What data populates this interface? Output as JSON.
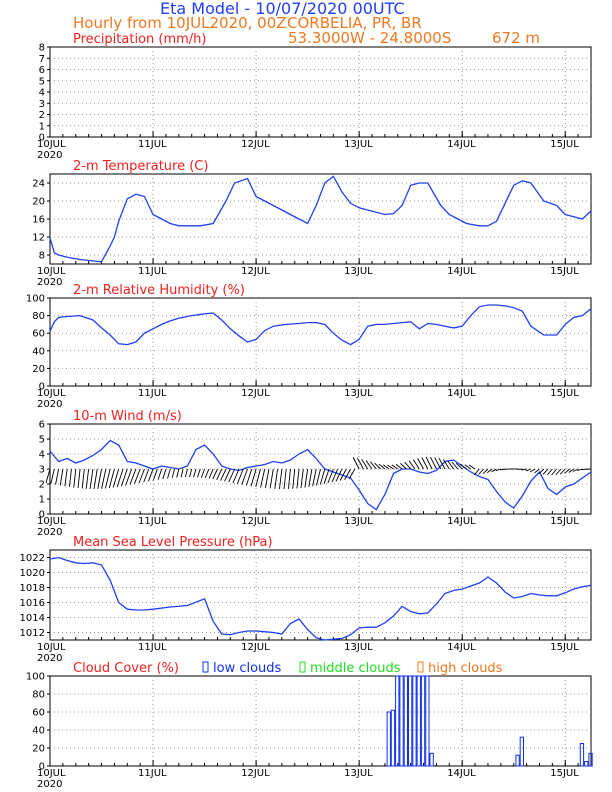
{
  "header": {
    "title": "Eta Model - 10/07/2020 00UTC",
    "subtitle": "Hourly from 10JUL2020, 00Z",
    "location": "CORBELIA, PR, BR",
    "coords": "53.3000W - 24.8000S",
    "elevation": "672  m"
  },
  "colors": {
    "title": "#1f3ff5",
    "subtitle": "#f07820",
    "panel_title": "#f02020",
    "series": "#2040f0",
    "low": "#1030f0",
    "middle": "#20e020",
    "high": "#f07820",
    "grid": "#999999"
  },
  "x_ticks": [
    "10JUL",
    "11JUL",
    "12JUL",
    "13JUL",
    "14JUL",
    "15JUL"
  ],
  "year_label": "2020",
  "chart_data": [
    {
      "id": "precip",
      "type": "bar",
      "title": "Precipitation (mm/h)",
      "ylim": [
        0,
        8
      ],
      "yticks": [
        "0",
        "1",
        "2",
        "3",
        "4",
        "5",
        "6",
        "7",
        "8"
      ],
      "x": [
        0,
        126
      ],
      "values": [
        0,
        0
      ]
    },
    {
      "id": "temp",
      "type": "line",
      "title": "2-m Temperature (C)",
      "ylim": [
        6,
        26
      ],
      "yticks": [
        "8",
        "12",
        "16",
        "20",
        "24"
      ],
      "x": [
        0,
        1,
        2,
        4,
        7,
        10,
        12,
        14,
        15,
        16,
        18,
        20,
        22,
        24,
        26,
        28,
        30,
        32,
        35,
        38,
        41,
        43,
        46,
        48,
        50,
        52,
        54,
        56,
        58,
        60,
        62,
        64,
        66,
        68,
        70,
        72,
        74,
        76,
        78,
        80,
        82,
        84,
        86,
        88,
        91,
        93,
        95,
        97,
        100,
        102,
        104,
        106,
        108,
        110,
        112,
        115,
        118,
        120,
        122,
        124,
        126
      ],
      "values": [
        11.8,
        8.5,
        8.0,
        7.5,
        7.0,
        6.7,
        6.5,
        10.0,
        12.0,
        15.5,
        20.5,
        21.5,
        21.0,
        17.0,
        16.0,
        15.0,
        14.5,
        14.5,
        14.5,
        15.0,
        20.0,
        24.0,
        25.0,
        21.0,
        20.0,
        19.0,
        18.0,
        17.0,
        16.0,
        15.0,
        19.0,
        24.0,
        25.5,
        22.0,
        19.5,
        18.5,
        18.0,
        17.5,
        17.0,
        17.2,
        19.0,
        23.5,
        24.0,
        24.0,
        19.0,
        17.0,
        16.0,
        15.0,
        14.5,
        14.5,
        15.5,
        19.5,
        23.5,
        24.5,
        24.0,
        20.0,
        19.0,
        17.0,
        16.5,
        16.0,
        17.8
      ]
    },
    {
      "id": "rh",
      "type": "line",
      "title": "2-m Relative Humidity (%)",
      "ylim": [
        0,
        100
      ],
      "yticks": [
        "0",
        "20",
        "40",
        "60",
        "80",
        "100"
      ],
      "x": [
        0,
        1,
        2,
        4,
        7,
        10,
        12,
        14,
        16,
        18,
        20,
        22,
        24,
        26,
        28,
        30,
        33,
        36,
        38,
        40,
        42,
        44,
        46,
        48,
        50,
        52,
        55,
        58,
        60,
        62,
        64,
        66,
        68,
        70,
        72,
        74,
        76,
        78,
        80,
        82,
        84,
        86,
        88,
        90,
        92,
        94,
        96,
        98,
        100,
        102,
        104,
        106,
        108,
        110,
        112,
        115,
        118,
        120,
        122,
        124,
        126
      ],
      "values": [
        62,
        73,
        78,
        79,
        80,
        75,
        66,
        58,
        48,
        47,
        50,
        60,
        65,
        70,
        74,
        77,
        80,
        82,
        83,
        75,
        65,
        57,
        50,
        53,
        63,
        68,
        70,
        71,
        72,
        72,
        70,
        60,
        52,
        47,
        53,
        68,
        70,
        70,
        71,
        72,
        73,
        65,
        71,
        70,
        68,
        66,
        68,
        80,
        90,
        92,
        92,
        91,
        89,
        85,
        68,
        58,
        58,
        70,
        78,
        80,
        88
      ]
    },
    {
      "id": "wind",
      "type": "line",
      "title": "10-m Wind (m/s)",
      "ylim": [
        0,
        6
      ],
      "yticks": [
        "0",
        "1",
        "2",
        "3",
        "4",
        "5",
        "6"
      ],
      "x": [
        0,
        2,
        4,
        6,
        8,
        10,
        12,
        14,
        16,
        18,
        20,
        22,
        24,
        26,
        28,
        30,
        32,
        34,
        36,
        38,
        40,
        42,
        44,
        46,
        48,
        50,
        52,
        54,
        56,
        58,
        60,
        62,
        64,
        66,
        68,
        70,
        72,
        74,
        76,
        78,
        80,
        82,
        84,
        86,
        88,
        90,
        92,
        94,
        96,
        98,
        100,
        102,
        104,
        106,
        108,
        110,
        112,
        114,
        116,
        118,
        120,
        122,
        124,
        126
      ],
      "values": [
        4.2,
        3.5,
        3.7,
        3.4,
        3.6,
        3.9,
        4.3,
        4.9,
        4.6,
        3.5,
        3.4,
        3.2,
        3.0,
        3.2,
        3.1,
        3.0,
        3.2,
        4.3,
        4.6,
        4.0,
        3.2,
        3.0,
        2.9,
        3.1,
        3.2,
        3.3,
        3.5,
        3.4,
        3.6,
        4.0,
        4.3,
        3.7,
        3.0,
        2.8,
        2.6,
        2.4,
        1.6,
        0.7,
        0.3,
        1.3,
        2.7,
        3.0,
        3.0,
        2.8,
        2.7,
        2.9,
        3.5,
        3.6,
        3.2,
        2.8,
        2.5,
        2.3,
        1.5,
        0.8,
        0.4,
        1.2,
        2.2,
        2.8,
        1.7,
        1.3,
        1.8,
        2.0,
        2.4,
        2.8
      ]
    },
    {
      "id": "pressure",
      "type": "line",
      "title": "Mean Sea Level Pressure (hPa)",
      "ylim": [
        1011,
        1023
      ],
      "yticks": [
        "1012",
        "1014",
        "1016",
        "1018",
        "1020",
        "1022"
      ],
      "x": [
        0,
        2,
        4,
        6,
        8,
        10,
        12,
        14,
        16,
        18,
        20,
        22,
        24,
        28,
        32,
        36,
        38,
        40,
        42,
        44,
        46,
        48,
        50,
        52,
        54,
        56,
        58,
        60,
        62,
        64,
        66,
        68,
        70,
        72,
        74,
        76,
        78,
        80,
        82,
        84,
        86,
        88,
        90,
        92,
        94,
        96,
        98,
        100,
        102,
        104,
        106,
        108,
        110,
        112,
        114,
        116,
        118,
        120,
        122,
        124,
        126
      ],
      "values": [
        1021.8,
        1022.0,
        1021.6,
        1021.3,
        1021.2,
        1021.3,
        1021.0,
        1019.0,
        1016.0,
        1015.1,
        1015.0,
        1015.0,
        1015.1,
        1015.4,
        1015.6,
        1016.5,
        1013.5,
        1011.8,
        1011.7,
        1012.0,
        1012.2,
        1012.2,
        1012.1,
        1012.0,
        1011.8,
        1013.2,
        1013.8,
        1012.4,
        1011.3,
        1011.0,
        1011.1,
        1011.2,
        1011.7,
        1012.6,
        1012.7,
        1012.7,
        1013.3,
        1014.2,
        1015.5,
        1014.8,
        1014.5,
        1014.6,
        1015.8,
        1017.2,
        1017.6,
        1017.8,
        1018.2,
        1018.6,
        1019.4,
        1018.6,
        1017.4,
        1016.6,
        1016.8,
        1017.2,
        1017.0,
        1016.9,
        1016.9,
        1017.3,
        1017.8,
        1018.1,
        1018.3
      ]
    },
    {
      "id": "cloud",
      "type": "bar",
      "title": "Cloud Cover (%)",
      "legend": [
        "low clouds",
        "middle clouds",
        "high clouds"
      ],
      "ylim": [
        0,
        100
      ],
      "yticks": [
        "0",
        "20",
        "40",
        "60",
        "80",
        "100"
      ],
      "series": [
        {
          "name": "low clouds",
          "x": [
            79,
            80,
            81,
            82,
            83,
            84,
            85,
            86,
            87,
            88,
            89,
            109,
            110,
            124,
            125,
            126
          ],
          "values": [
            60,
            62,
            100,
            100,
            100,
            100,
            100,
            100,
            100,
            100,
            14,
            12,
            32,
            25,
            5,
            14
          ]
        }
      ]
    }
  ]
}
